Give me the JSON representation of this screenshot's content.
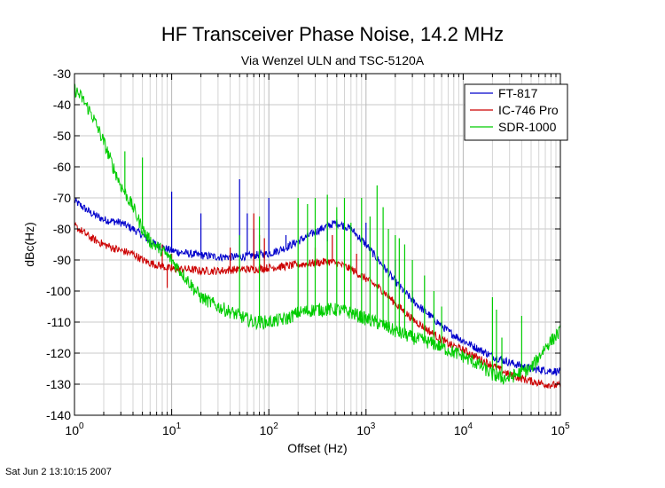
{
  "timestamp": "Sat Jun  2 13:10:15 2007",
  "chart_data": {
    "type": "line",
    "title": "HF Transceiver Phase Noise, 14.2 MHz",
    "subtitle": "Via Wenzel ULN and TSC-5120A",
    "xlabel": "Offset (Hz)",
    "ylabel": "dBc(Hz)",
    "x_scale": "log",
    "xlim": [
      1,
      100000
    ],
    "ylim": [
      -140,
      -30
    ],
    "y_ticks": [
      -140,
      -130,
      -120,
      -110,
      -100,
      -90,
      -80,
      -70,
      -60,
      -50,
      -40,
      -30
    ],
    "x_ticks": [
      1,
      10,
      100,
      1000,
      10000,
      100000
    ],
    "x_tick_labels": [
      {
        "base": "10",
        "exp": "0"
      },
      {
        "base": "10",
        "exp": "1"
      },
      {
        "base": "10",
        "exp": "2"
      },
      {
        "base": "10",
        "exp": "3"
      },
      {
        "base": "10",
        "exp": "4"
      },
      {
        "base": "10",
        "exp": "5"
      }
    ],
    "grid": true,
    "legend_position": "top-right",
    "series": [
      {
        "name": "FT-817",
        "color": "#0000cc",
        "x": [
          1,
          1.5,
          2,
          3,
          4,
          5,
          6,
          8,
          10,
          15,
          20,
          30,
          50,
          70,
          100,
          150,
          200,
          300,
          400,
          500,
          700,
          1000,
          1500,
          2000,
          3000,
          5000,
          7000,
          10000,
          15000,
          20000,
          30000,
          50000,
          70000,
          100000
        ],
        "y": [
          -71,
          -75,
          -77,
          -78,
          -80,
          -82,
          -84,
          -86,
          -87,
          -88,
          -88.5,
          -89,
          -89,
          -88.5,
          -88,
          -86,
          -84,
          -81,
          -79,
          -78,
          -80,
          -85,
          -92,
          -97,
          -103,
          -109,
          -113,
          -116,
          -119,
          -121,
          -123,
          -125,
          -125.5,
          -126
        ],
        "spikes": [
          {
            "x": 10,
            "y": -68
          },
          {
            "x": 20,
            "y": -75
          },
          {
            "x": 50,
            "y": -64
          },
          {
            "x": 60,
            "y": -75
          },
          {
            "x": 70,
            "y": -80
          },
          {
            "x": 100,
            "y": -70
          },
          {
            "x": 150,
            "y": -82
          },
          {
            "x": 400,
            "y": -84
          },
          {
            "x": 1000,
            "y": -78
          },
          {
            "x": 2000,
            "y": -90
          },
          {
            "x": 3000,
            "y": -100
          }
        ]
      },
      {
        "name": "IC-746 Pro",
        "color": "#cc0000",
        "x": [
          1,
          1.5,
          2,
          3,
          4,
          5,
          6,
          8,
          10,
          15,
          20,
          30,
          50,
          70,
          100,
          150,
          200,
          300,
          400,
          500,
          700,
          1000,
          1500,
          2000,
          3000,
          5000,
          7000,
          10000,
          15000,
          20000,
          30000,
          50000,
          70000,
          100000
        ],
        "y": [
          -79,
          -83,
          -85,
          -87,
          -88,
          -90,
          -91,
          -92,
          -93,
          -93,
          -93.5,
          -93.5,
          -93,
          -93,
          -92.5,
          -92,
          -91.5,
          -91,
          -90.5,
          -91,
          -93,
          -96,
          -100,
          -104,
          -109,
          -114,
          -117,
          -119,
          -122,
          -124,
          -127,
          -129,
          -130,
          -130.5
        ],
        "spikes": [
          {
            "x": 8,
            "y": -85
          },
          {
            "x": 9,
            "y": -99
          },
          {
            "x": 10,
            "y": -88
          },
          {
            "x": 40,
            "y": -86
          },
          {
            "x": 70,
            "y": -75
          },
          {
            "x": 80,
            "y": -82
          },
          {
            "x": 90,
            "y": -83
          },
          {
            "x": 300,
            "y": -86
          },
          {
            "x": 450,
            "y": -82
          },
          {
            "x": 800,
            "y": -88
          }
        ]
      },
      {
        "name": "SDR-1000",
        "color": "#00cc00",
        "x": [
          1,
          1.2,
          1.5,
          2,
          2.5,
          3,
          4,
          5,
          6,
          8,
          10,
          15,
          20,
          30,
          50,
          70,
          100,
          150,
          200,
          300,
          500,
          700,
          1000,
          1500,
          2000,
          3000,
          5000,
          7000,
          10000,
          15000,
          20000,
          25000,
          30000,
          40000,
          50000,
          70000,
          100000
        ],
        "y": [
          -35,
          -38,
          -43,
          -52,
          -60,
          -66,
          -73,
          -80,
          -84,
          -87,
          -90,
          -97,
          -102,
          -105,
          -108,
          -110,
          -110,
          -109,
          -107,
          -106,
          -106,
          -107,
          -109,
          -111,
          -113,
          -115,
          -117,
          -119,
          -121,
          -124,
          -127,
          -128,
          -128,
          -126,
          -125,
          -118,
          -113
        ],
        "spikes": [
          {
            "x": 3.3,
            "y": -55
          },
          {
            "x": 5,
            "y": -57
          },
          {
            "x": 50,
            "y": -82
          },
          {
            "x": 80,
            "y": -76
          },
          {
            "x": 200,
            "y": -70
          },
          {
            "x": 250,
            "y": -72
          },
          {
            "x": 300,
            "y": -70
          },
          {
            "x": 400,
            "y": -69
          },
          {
            "x": 500,
            "y": -73
          },
          {
            "x": 600,
            "y": -70
          },
          {
            "x": 700,
            "y": -78
          },
          {
            "x": 900,
            "y": -70
          },
          {
            "x": 1100,
            "y": -76
          },
          {
            "x": 1300,
            "y": -66
          },
          {
            "x": 1500,
            "y": -73
          },
          {
            "x": 1700,
            "y": -80
          },
          {
            "x": 2000,
            "y": -82
          },
          {
            "x": 2200,
            "y": -83
          },
          {
            "x": 2500,
            "y": -85
          },
          {
            "x": 3000,
            "y": -90
          },
          {
            "x": 4000,
            "y": -95
          },
          {
            "x": 5000,
            "y": -100
          },
          {
            "x": 6000,
            "y": -105
          },
          {
            "x": 20000,
            "y": -102
          },
          {
            "x": 22000,
            "y": -106
          },
          {
            "x": 25000,
            "y": -115
          },
          {
            "x": 40000,
            "y": -108
          }
        ]
      }
    ]
  }
}
